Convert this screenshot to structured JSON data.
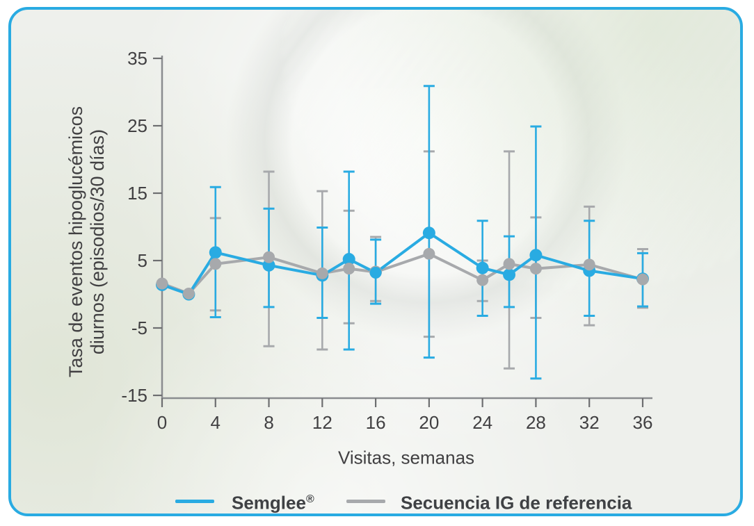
{
  "axes": {
    "xlabel": "Visitas, semanas",
    "ylabel_line1": "Tasa de eventos hipoglucémicos",
    "ylabel_line2": "diurnos (episodios/30 días)"
  },
  "legend": {
    "items": [
      {
        "label": "Semglee",
        "sup": "®",
        "color": "#29abe2"
      },
      {
        "label": "Secuencia IG de referencia",
        "sup": "",
        "color": "#a7a9ac"
      }
    ]
  },
  "style": {
    "accent": "#29abe2",
    "gray": "#a7a9ac",
    "text": "#414042",
    "axis_line": "#8a8c8f",
    "tick": "#6d6e70",
    "card_border": "#29abe2",
    "card_bg": "#eef0ec"
  },
  "chart_data": {
    "type": "line",
    "title": "",
    "xlabel": "Visitas, semanas",
    "ylabel": "Tasa de eventos hipoglucémicos diurnos (episodios/30 días)",
    "x": [
      0,
      2,
      4,
      8,
      12,
      14,
      16,
      20,
      24,
      26,
      28,
      32,
      36
    ],
    "x_ticks": [
      0,
      4,
      8,
      12,
      16,
      20,
      24,
      28,
      32,
      36
    ],
    "y_ticks": [
      35,
      25,
      15,
      5,
      -5,
      -15
    ],
    "xlim": [
      0,
      36
    ],
    "ylim": [
      -15,
      35
    ],
    "grid": false,
    "legend_position": "bottom",
    "error_bars": true,
    "series": [
      {
        "name": "Secuencia IG de referencia",
        "color": "#a7a9ac",
        "marker": "circle",
        "values": [
          1.6,
          0.1,
          4.5,
          5.5,
          3.1,
          3.8,
          3.3,
          6.0,
          2.1,
          4.5,
          3.8,
          4.4,
          2.2
        ],
        "err_low": [
          null,
          null,
          -2.4,
          -7.7,
          -8.2,
          -4.3,
          -1.0,
          -6.3,
          -1.0,
          -11.0,
          -3.5,
          -4.6,
          -2.0
        ],
        "err_high": [
          null,
          null,
          11.3,
          18.2,
          15.3,
          12.4,
          8.5,
          21.2,
          5.0,
          21.2,
          11.4,
          13.0,
          6.7
        ]
      },
      {
        "name": "Semglee®",
        "color": "#29abe2",
        "marker": "circle",
        "values": [
          1.4,
          0.0,
          6.2,
          4.3,
          2.8,
          5.2,
          3.2,
          9.1,
          3.9,
          2.9,
          5.8,
          3.5,
          2.3
        ],
        "err_low": [
          null,
          null,
          -3.4,
          -1.9,
          -3.5,
          -8.2,
          -1.4,
          -9.4,
          -3.2,
          -1.9,
          -12.5,
          -3.2,
          -1.8
        ],
        "err_high": [
          null,
          null,
          15.9,
          12.7,
          9.9,
          18.2,
          8.1,
          30.9,
          10.9,
          8.6,
          24.9,
          10.9,
          6.1
        ]
      }
    ]
  }
}
